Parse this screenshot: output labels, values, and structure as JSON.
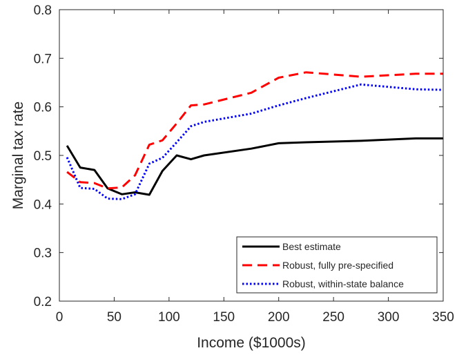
{
  "chart_data": {
    "type": "line",
    "xlabel": "Income ($1000s)",
    "ylabel": "Marginal tax rate",
    "xlim": [
      0,
      350
    ],
    "ylim": [
      0.2,
      0.8
    ],
    "xticks": [
      0,
      50,
      100,
      150,
      200,
      250,
      300,
      350
    ],
    "yticks": [
      0.2,
      0.3,
      0.4,
      0.5,
      0.6,
      0.7,
      0.8
    ],
    "xtick_labels": [
      "0",
      "50",
      "100",
      "150",
      "200",
      "250",
      "300",
      "350"
    ],
    "ytick_labels": [
      "0.2",
      "0.3",
      "0.4",
      "0.5",
      "0.6",
      "0.7",
      "0.8"
    ],
    "grid": false,
    "legend_position": "bottom-right",
    "series": [
      {
        "name": "Best estimate",
        "color": "#000000",
        "style": "solid",
        "x": [
          7,
          19,
          32,
          44,
          57,
          69,
          82,
          94,
          107,
          120,
          132,
          175,
          200,
          225,
          275,
          325,
          350
        ],
        "y": [
          0.52,
          0.475,
          0.47,
          0.432,
          0.42,
          0.424,
          0.419,
          0.468,
          0.5,
          0.492,
          0.5,
          0.514,
          0.525,
          0.527,
          0.53,
          0.535,
          0.535
        ]
      },
      {
        "name": "Robust, fully pre-specified",
        "color": "#ff0000",
        "style": "dashed",
        "x": [
          7,
          19,
          32,
          44,
          57,
          69,
          82,
          94,
          107,
          120,
          132,
          175,
          200,
          225,
          275,
          325,
          350
        ],
        "y": [
          0.466,
          0.445,
          0.443,
          0.432,
          0.434,
          0.459,
          0.522,
          0.531,
          0.566,
          0.603,
          0.605,
          0.629,
          0.66,
          0.671,
          0.662,
          0.668,
          0.668
        ]
      },
      {
        "name": "Robust, within-state balance",
        "color": "#0000ff",
        "style": "dotted",
        "x": [
          7,
          19,
          32,
          44,
          57,
          69,
          82,
          94,
          107,
          120,
          132,
          175,
          200,
          225,
          275,
          325,
          350
        ],
        "y": [
          0.496,
          0.433,
          0.431,
          0.411,
          0.41,
          0.42,
          0.483,
          0.495,
          0.527,
          0.56,
          0.569,
          0.586,
          0.603,
          0.618,
          0.646,
          0.636,
          0.635
        ]
      }
    ]
  }
}
